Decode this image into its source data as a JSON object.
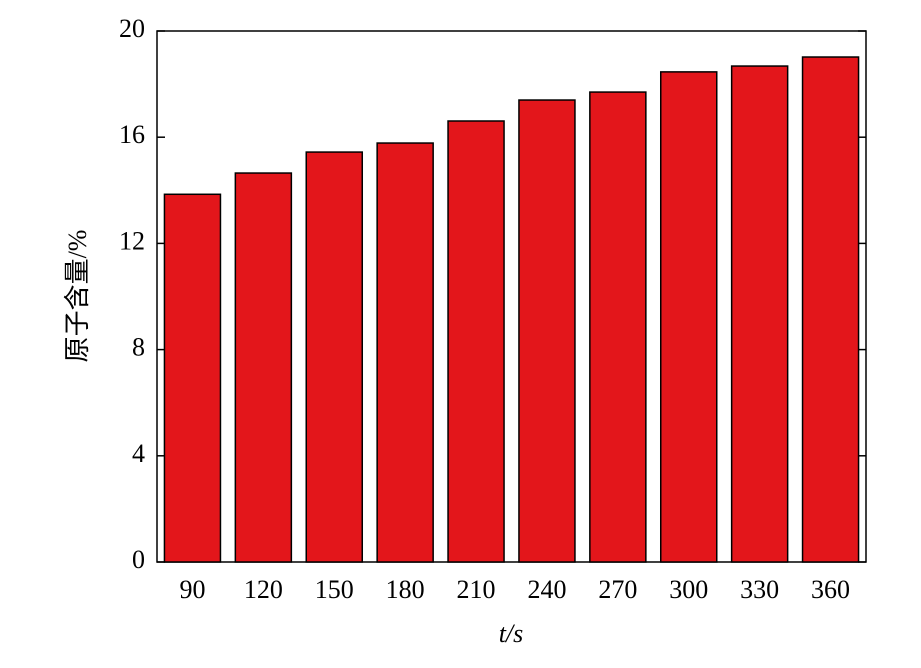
{
  "chart_data": {
    "type": "bar",
    "x_label": "t/s",
    "y_label": "原子含量/%",
    "categories": [
      "90",
      "120",
      "150",
      "180",
      "210",
      "240",
      "270",
      "300",
      "330",
      "360"
    ],
    "values": [
      13.85,
      14.65,
      15.44,
      15.78,
      16.61,
      17.4,
      17.7,
      18.46,
      18.68,
      19.02
    ],
    "color": "#e3161b",
    "ylim": [
      0,
      20
    ],
    "yticks": [
      0,
      4,
      8,
      12,
      16,
      20
    ],
    "grid": false
  }
}
